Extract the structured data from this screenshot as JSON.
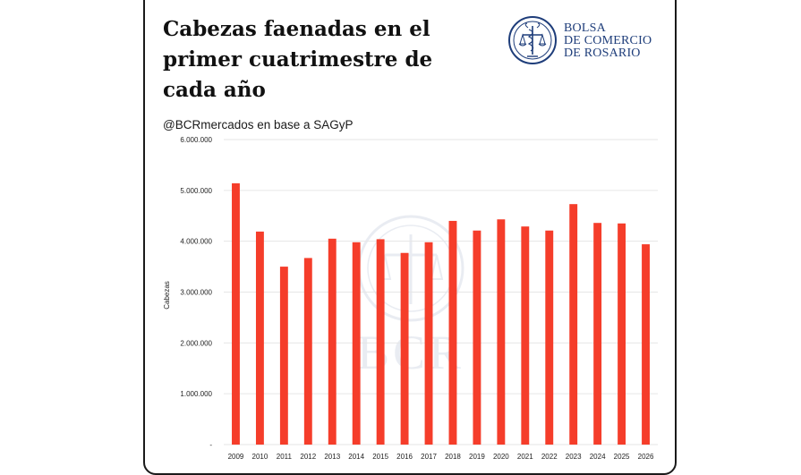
{
  "header": {
    "title": "Cabezas faenadas en el primer cuatrimestre de cada año",
    "subtitle": "@BCRmercados en base a SAGyP"
  },
  "logo": {
    "line1": "BOLSA",
    "line2": "DE COMERCIO",
    "line3": "DE ROSARIO",
    "watermark": "BCR"
  },
  "colors": {
    "bar": "#f53d2a",
    "brand": "#1e3d7a",
    "grid": "#e6e6e6"
  },
  "chart_data": {
    "type": "bar",
    "title": "Cabezas faenadas en el primer cuatrimestre de cada año",
    "ylabel": "Cabezas",
    "xlabel": "",
    "ylim": [
      0,
      6000000
    ],
    "yticks": [
      0,
      1000000,
      2000000,
      3000000,
      4000000,
      5000000,
      6000000
    ],
    "ytick_labels": [
      "-",
      "1.000.000",
      "2.000.000",
      "3.000.000",
      "4.000.000",
      "5.000.000",
      "6.000.000"
    ],
    "grid": true,
    "legend": "none",
    "categories": [
      "2009",
      "2010",
      "2011",
      "2012",
      "2013",
      "2014",
      "2015",
      "2016",
      "2017",
      "2018",
      "2019",
      "2020",
      "2021",
      "2022",
      "2023",
      "2024",
      "2025",
      "2026"
    ],
    "values": [
      5140000,
      4190000,
      3500000,
      3670000,
      4050000,
      3980000,
      4040000,
      3770000,
      3980000,
      4400000,
      4210000,
      4430000,
      4290000,
      4210000,
      4730000,
      4360000,
      4350000,
      3940000
    ]
  }
}
